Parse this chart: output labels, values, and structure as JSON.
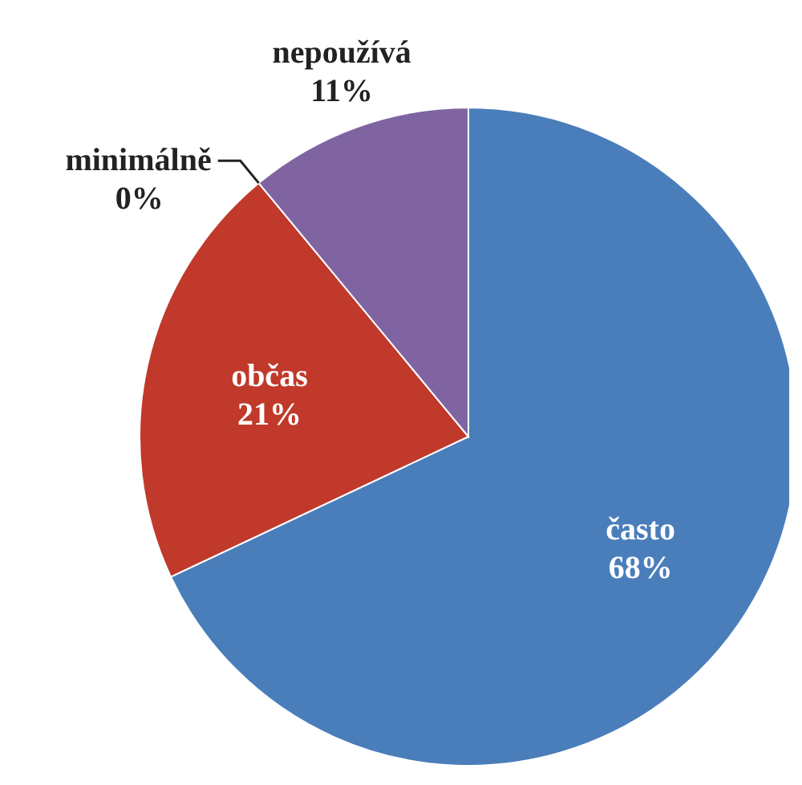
{
  "chart_data": {
    "type": "pie",
    "categories": [
      "často",
      "občas",
      "minimálně",
      "nepoužívá"
    ],
    "values": [
      68,
      21,
      0,
      11
    ],
    "colors": [
      "#4a7ebb",
      "#c0392b",
      "#c0392b",
      "#8064a2"
    ],
    "value_labels": [
      "68%",
      "21%",
      "0%",
      "11%"
    ]
  }
}
